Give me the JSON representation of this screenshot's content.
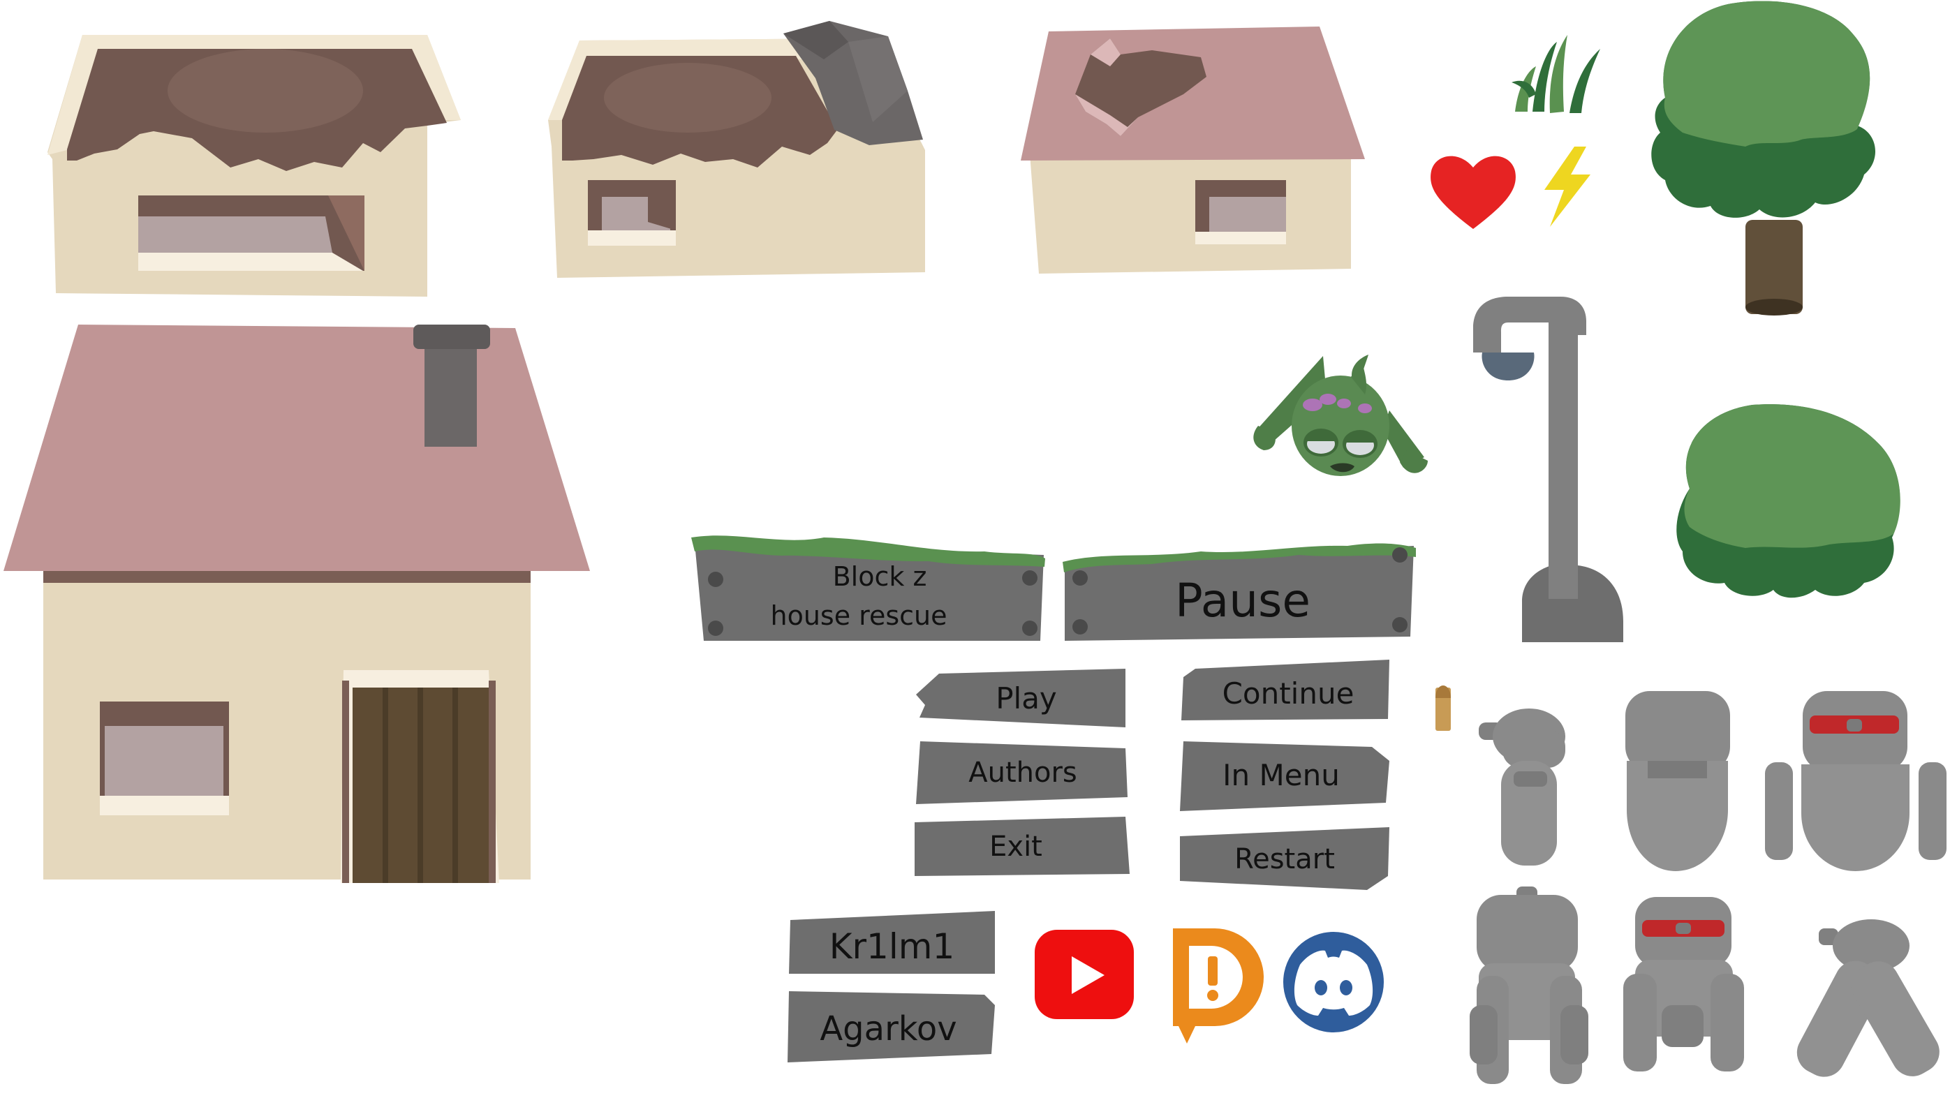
{
  "title_sign": {
    "line1": "Block z",
    "line2": "house rescue"
  },
  "pause_sign": {
    "label": "Pause"
  },
  "main_menu": {
    "play": "Play",
    "authors": "Authors",
    "exit": "Exit"
  },
  "pause_menu": {
    "continue": "Continue",
    "in_menu": "In Menu",
    "restart": "Restart"
  },
  "authors": {
    "author1": "Kr1lm1",
    "author2": "Agarkov"
  },
  "icons": {
    "social": [
      "youtube-icon",
      "donationalerts-icon",
      "discord-icon"
    ],
    "pickups": [
      "heart-icon",
      "lightning-icon",
      "bullet-icon"
    ]
  },
  "colors": {
    "sign_gray": "#6e6e6e",
    "moss_green": "#5a9150",
    "roof_pink": "#c09595",
    "wall_cream": "#e5d8bd",
    "heart_red": "#e62323",
    "bolt_yellow": "#eed620",
    "youtube_red": "#ee0f0f",
    "donation_orange": "#eb8a1c",
    "discord_blue": "#2f5d9c"
  }
}
